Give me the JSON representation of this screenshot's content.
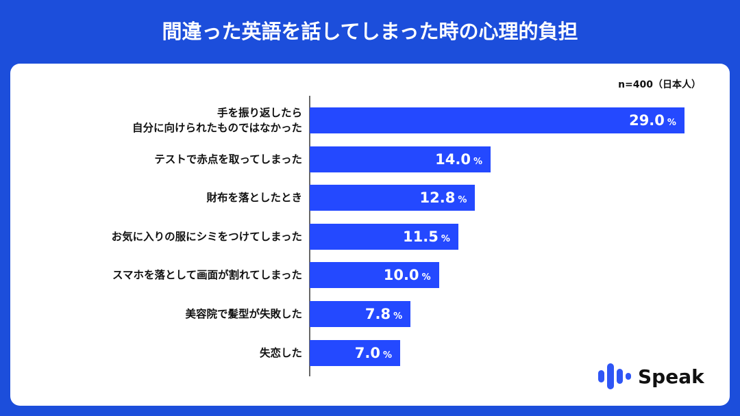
{
  "title": "間違った英語を話してしまった時の心理的負担",
  "note": "n=400（日本人）",
  "logo_text": "Speak",
  "colors": {
    "background": "#1c4edb",
    "bar": "#2449ff",
    "logo": "#2f56f5"
  },
  "chart_data": {
    "type": "bar",
    "orientation": "horizontal",
    "categories": [
      "手を振り返したら\n自分に向けられたものではなかった",
      "テストで赤点を取ってしまった",
      "財布を落としたとき",
      "お気に入りの服にシミをつけてしまった",
      "スマホを落として画面が割れてしまった",
      "美容院で髪型が失敗した",
      "失恋した"
    ],
    "values": [
      29.0,
      14.0,
      12.8,
      11.5,
      10.0,
      7.8,
      7.0
    ],
    "unit": "%",
    "grid": false
  }
}
